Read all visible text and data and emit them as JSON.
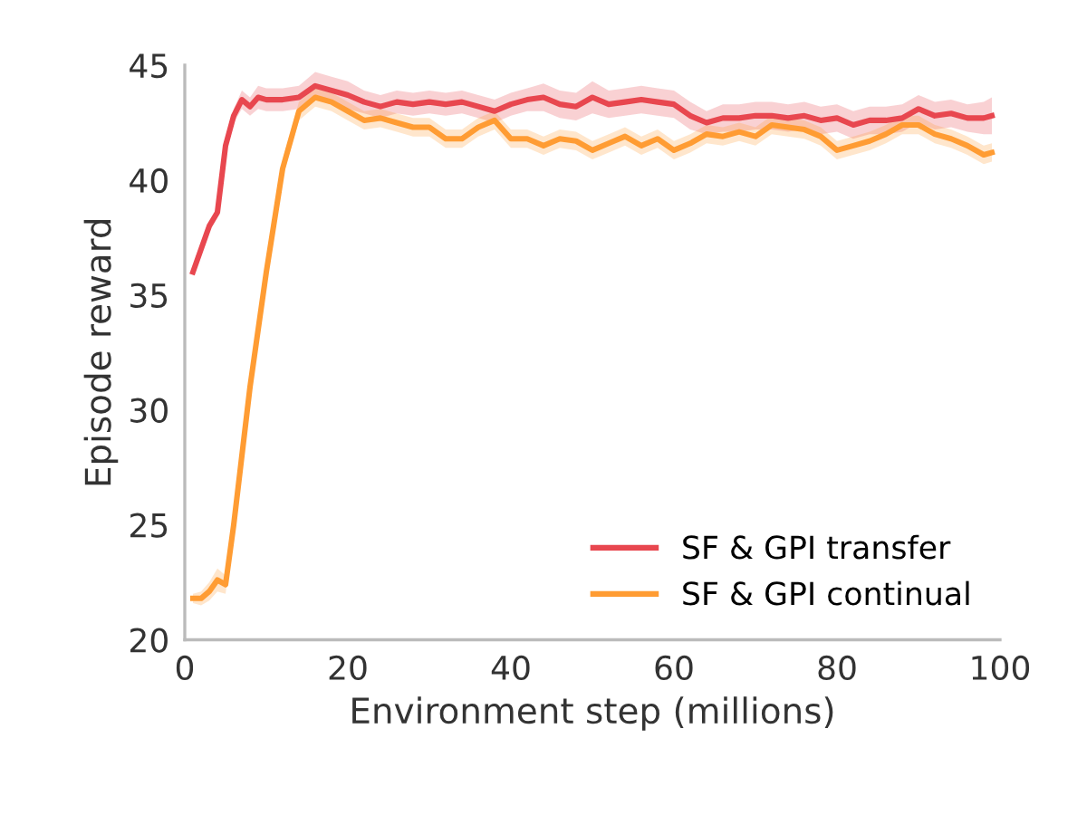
{
  "chart_data": {
    "type": "line",
    "xlabel": "Environment step (millions)",
    "ylabel": "Episode reward",
    "xlim": [
      0,
      100
    ],
    "xticks": [
      0,
      20,
      40,
      60,
      80,
      100
    ],
    "ylim": [
      20,
      45
    ],
    "yticks": [
      20,
      25,
      30,
      35,
      40,
      45
    ],
    "grid": false,
    "legend": "bottom right",
    "line_style": "solid",
    "marker": "none",
    "series": [
      {
        "name": "SF & GPI transfer",
        "color": "#e8474f",
        "x": [
          1,
          3,
          4,
          5,
          6,
          7,
          8,
          9,
          10,
          12,
          14,
          16,
          18,
          20,
          22,
          24,
          26,
          28,
          30,
          32,
          34,
          36,
          38,
          40,
          42,
          44,
          46,
          48,
          50,
          52,
          54,
          56,
          58,
          60,
          62,
          64,
          66,
          68,
          70,
          72,
          74,
          76,
          78,
          80,
          82,
          84,
          86,
          88,
          90,
          92,
          94,
          96,
          98,
          99
        ],
        "values": [
          36.0,
          38.0,
          38.6,
          41.5,
          42.8,
          43.5,
          43.2,
          43.6,
          43.5,
          43.5,
          43.6,
          44.1,
          43.9,
          43.7,
          43.4,
          43.2,
          43.4,
          43.3,
          43.4,
          43.3,
          43.4,
          43.2,
          43.0,
          43.3,
          43.5,
          43.6,
          43.3,
          43.2,
          43.6,
          43.3,
          43.4,
          43.5,
          43.4,
          43.3,
          42.8,
          42.5,
          42.7,
          42.7,
          42.8,
          42.8,
          42.7,
          42.8,
          42.6,
          42.7,
          42.4,
          42.6,
          42.6,
          42.7,
          43.1,
          42.8,
          42.9,
          42.7,
          42.7,
          42.8
        ],
        "lower": [
          35.9,
          37.9,
          38.5,
          41.3,
          42.5,
          43.1,
          42.8,
          43.1,
          43.0,
          43.0,
          43.1,
          43.5,
          43.3,
          43.1,
          42.9,
          42.7,
          42.9,
          42.8,
          42.9,
          42.8,
          42.9,
          42.7,
          42.5,
          42.8,
          43.0,
          43.0,
          42.7,
          42.6,
          42.9,
          42.7,
          42.8,
          42.9,
          42.8,
          42.7,
          42.2,
          42.0,
          42.1,
          42.1,
          42.2,
          42.2,
          42.1,
          42.2,
          42.0,
          42.1,
          41.8,
          42.0,
          42.0,
          42.1,
          42.5,
          42.2,
          42.3,
          42.1,
          42.0,
          42.0
        ],
        "upper": [
          36.1,
          38.1,
          38.7,
          41.7,
          43.1,
          43.9,
          43.6,
          44.1,
          44.0,
          44.0,
          44.1,
          44.7,
          44.5,
          44.3,
          43.9,
          43.7,
          43.9,
          43.8,
          43.9,
          43.8,
          43.9,
          43.7,
          43.5,
          43.8,
          44.0,
          44.2,
          43.9,
          43.8,
          44.3,
          43.9,
          44.0,
          44.1,
          44.0,
          43.9,
          43.4,
          43.0,
          43.3,
          43.3,
          43.4,
          43.4,
          43.3,
          43.4,
          43.2,
          43.3,
          43.0,
          43.2,
          43.2,
          43.3,
          43.7,
          43.4,
          43.5,
          43.3,
          43.4,
          43.6
        ]
      },
      {
        "name": "SF & GPI continual",
        "color": "#ff9c33",
        "x": [
          1,
          2,
          3,
          4,
          5,
          6,
          8,
          10,
          12,
          14,
          16,
          18,
          20,
          22,
          24,
          26,
          28,
          30,
          32,
          34,
          36,
          38,
          40,
          42,
          44,
          46,
          48,
          50,
          52,
          54,
          56,
          58,
          60,
          62,
          64,
          66,
          68,
          70,
          72,
          74,
          76,
          78,
          80,
          82,
          84,
          86,
          88,
          90,
          92,
          94,
          96,
          98,
          99
        ],
        "values": [
          21.8,
          21.8,
          22.1,
          22.6,
          22.4,
          25.0,
          31.0,
          36.0,
          40.5,
          43.0,
          43.6,
          43.4,
          43.0,
          42.6,
          42.7,
          42.5,
          42.3,
          42.3,
          41.8,
          41.8,
          42.3,
          42.6,
          41.8,
          41.8,
          41.5,
          41.8,
          41.7,
          41.3,
          41.6,
          41.9,
          41.5,
          41.8,
          41.3,
          41.6,
          42.0,
          41.9,
          42.1,
          41.9,
          42.4,
          42.3,
          42.2,
          41.9,
          41.3,
          41.5,
          41.7,
          42.0,
          42.4,
          42.4,
          42.0,
          41.8,
          41.5,
          41.1,
          41.2
        ],
        "lower": [
          21.6,
          21.5,
          21.7,
          22.1,
          22.0,
          24.7,
          30.7,
          35.7,
          40.1,
          42.6,
          43.2,
          43.0,
          42.6,
          42.2,
          42.3,
          42.1,
          41.9,
          41.9,
          41.4,
          41.4,
          41.9,
          42.2,
          41.4,
          41.4,
          41.1,
          41.4,
          41.3,
          40.9,
          41.2,
          41.5,
          41.1,
          41.4,
          40.9,
          41.2,
          41.6,
          41.5,
          41.7,
          41.5,
          42.0,
          41.9,
          41.8,
          41.5,
          40.9,
          41.1,
          41.3,
          41.6,
          42.0,
          42.0,
          41.6,
          41.4,
          41.1,
          40.7,
          40.8
        ],
        "upper": [
          22.0,
          22.1,
          22.5,
          23.1,
          22.8,
          25.3,
          31.3,
          36.3,
          40.9,
          43.4,
          44.0,
          43.8,
          43.4,
          43.0,
          43.1,
          42.9,
          42.7,
          42.7,
          42.2,
          42.2,
          42.7,
          43.0,
          42.2,
          42.2,
          41.9,
          42.2,
          42.1,
          41.7,
          42.0,
          42.3,
          41.9,
          42.2,
          41.7,
          42.0,
          42.4,
          42.3,
          42.5,
          42.3,
          42.8,
          42.7,
          42.6,
          42.3,
          41.7,
          41.9,
          42.1,
          42.4,
          42.8,
          42.8,
          42.4,
          42.2,
          41.9,
          41.5,
          41.6
        ]
      }
    ]
  }
}
